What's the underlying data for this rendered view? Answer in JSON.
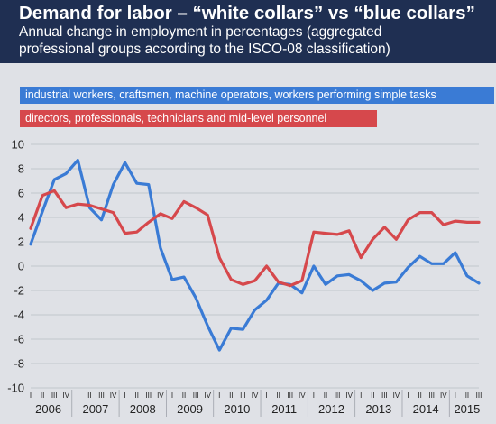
{
  "title": "Demand for labor – “white collars” vs “blue collars”",
  "subtitle_line1": "Annual change in employment in percentages (aggregated",
  "subtitle_line2": "professional groups according to the ISCO-08 classification)",
  "colors": {
    "header": "#1f2f52",
    "blue": "#3a7bd5",
    "red": "#d6484c",
    "background": "#dfe1e6"
  },
  "chart_data": {
    "type": "line",
    "title": "Demand for labor – “white collars” vs “blue collars”",
    "ylim": [
      -10,
      10
    ],
    "yticks": [
      10,
      8,
      6,
      4,
      2,
      0,
      -2,
      -4,
      -6,
      -8,
      -10
    ],
    "grid": true,
    "legend_placement": "top-left",
    "quarters": [
      "I",
      "II",
      "III",
      "IV",
      "I",
      "II",
      "III",
      "IV",
      "I",
      "II",
      "III",
      "IV",
      "I",
      "II",
      "III",
      "IV",
      "I",
      "II",
      "III",
      "IV",
      "I",
      "II",
      "III",
      "IV",
      "I",
      "II",
      "III",
      "IV",
      "I",
      "II",
      "III",
      "IV",
      "I",
      "II",
      "III",
      "IV",
      "I",
      "II",
      "III"
    ],
    "years": [
      "2006",
      "2007",
      "2008",
      "2009",
      "2010",
      "2011",
      "2012",
      "2013",
      "2014",
      "2015"
    ],
    "x": [
      "2006 I",
      "2006 II",
      "2006 III",
      "2006 IV",
      "2007 I",
      "2007 II",
      "2007 III",
      "2007 IV",
      "2008 I",
      "2008 II",
      "2008 III",
      "2008 IV",
      "2009 I",
      "2009 II",
      "2009 III",
      "2009 IV",
      "2010 I",
      "2010 II",
      "2010 III",
      "2010 IV",
      "2011 I",
      "2011 II",
      "2011 III",
      "2011 IV",
      "2012 I",
      "2012 II",
      "2012 III",
      "2012 IV",
      "2013 I",
      "2013 II",
      "2013 III",
      "2013 IV",
      "2014 I",
      "2014 II",
      "2014 III",
      "2014 IV",
      "2015 I",
      "2015 II",
      "2015 III"
    ],
    "series": [
      {
        "name": "industrial workers, craftsmen, machine operators, workers performing simple tasks",
        "color": "#3a7bd5",
        "values": [
          1.8,
          4.5,
          7.1,
          7.6,
          8.7,
          4.8,
          3.8,
          6.7,
          8.5,
          6.8,
          6.7,
          1.5,
          -1.1,
          -0.9,
          -2.6,
          -4.9,
          -6.9,
          -5.1,
          -5.2,
          -3.6,
          -2.8,
          -1.4,
          -1.5,
          -2.2,
          0.0,
          -1.5,
          -0.8,
          -0.7,
          -1.2,
          -2.0,
          -1.4,
          -1.3,
          -0.1,
          0.8,
          0.2,
          0.2,
          1.1,
          -0.8,
          -1.4
        ]
      },
      {
        "name": "directors, professionals, technicians and mid-level personnel",
        "color": "#d6484c",
        "values": [
          3.1,
          5.8,
          6.2,
          4.8,
          5.1,
          5.0,
          4.7,
          4.4,
          2.7,
          2.8,
          3.6,
          4.3,
          3.9,
          5.3,
          4.8,
          4.2,
          0.7,
          -1.1,
          -1.5,
          -1.2,
          0.0,
          -1.3,
          -1.6,
          -1.2,
          2.8,
          2.7,
          2.6,
          2.9,
          0.7,
          2.2,
          3.2,
          2.2,
          3.8,
          4.4,
          4.4,
          3.4,
          3.7,
          3.6,
          3.6
        ]
      }
    ]
  }
}
